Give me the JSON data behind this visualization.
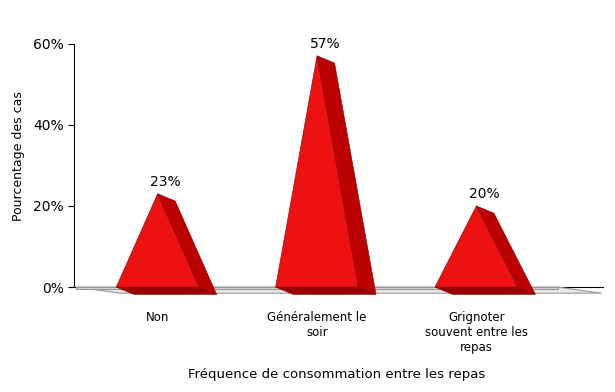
{
  "categories": [
    "Non",
    "Généralement le\nsoir",
    "Grignoter\nsouvent entre les\nrepas"
  ],
  "values": [
    23,
    57,
    20
  ],
  "labels": [
    "23%",
    "57%",
    "20%"
  ],
  "bar_color_front": "#EE1111",
  "bar_color_side": "#BB0000",
  "bar_color_base": "#CC0000",
  "xlabel": "Fréquence de consommation entre les repas",
  "ylabel": "Pourcentage des cas",
  "ylim": [
    0,
    65
  ],
  "yticks": [
    0,
    20,
    40,
    60
  ],
  "ytick_labels": [
    "0%",
    "20%",
    "40%",
    "60%"
  ],
  "background_color": "#ffffff",
  "platform_fill": "#e0e0e0",
  "platform_edge": "#aaaaaa"
}
